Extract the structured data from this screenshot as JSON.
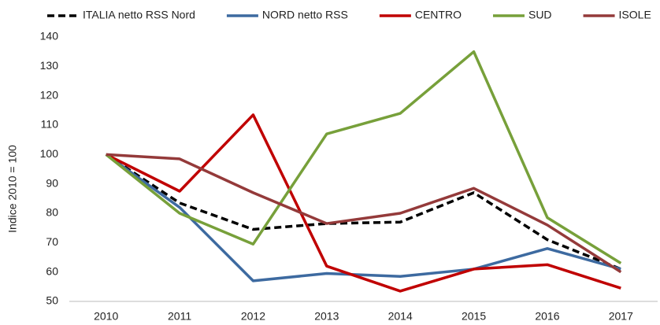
{
  "chart_data": {
    "type": "line",
    "y_label": "Indice 2010 = 100",
    "categories": [
      "2010",
      "2011",
      "2012",
      "2013",
      "2014",
      "2015",
      "2016",
      "2017"
    ],
    "series": [
      {
        "name": "ITALIA netto RSS Nord",
        "color": "#000000",
        "dashed": true,
        "values": [
          100,
          83.5,
          74.5,
          76.5,
          77,
          87,
          71,
          61
        ]
      },
      {
        "name": "NORD netto RSS",
        "color": "#3d6aa0",
        "values": [
          100,
          82,
          57,
          59.5,
          58.5,
          61,
          68,
          61
        ]
      },
      {
        "name": "CENTRO",
        "color": "#c00000",
        "values": [
          100,
          87.5,
          113.5,
          62,
          53.5,
          61,
          62.5,
          54.5
        ]
      },
      {
        "name": "SUD",
        "color": "#77a03a",
        "values": [
          100,
          80,
          69.5,
          107,
          114,
          135,
          78.5,
          63
        ]
      },
      {
        "name": "ISOLE",
        "color": "#943a3a",
        "values": [
          100,
          98.5,
          87,
          76.5,
          80,
          88.5,
          76,
          60
        ]
      }
    ],
    "ylim": [
      50,
      140
    ],
    "yticks": [
      50,
      60,
      70,
      80,
      90,
      100,
      110,
      120,
      130,
      140
    ],
    "grid": false
  }
}
